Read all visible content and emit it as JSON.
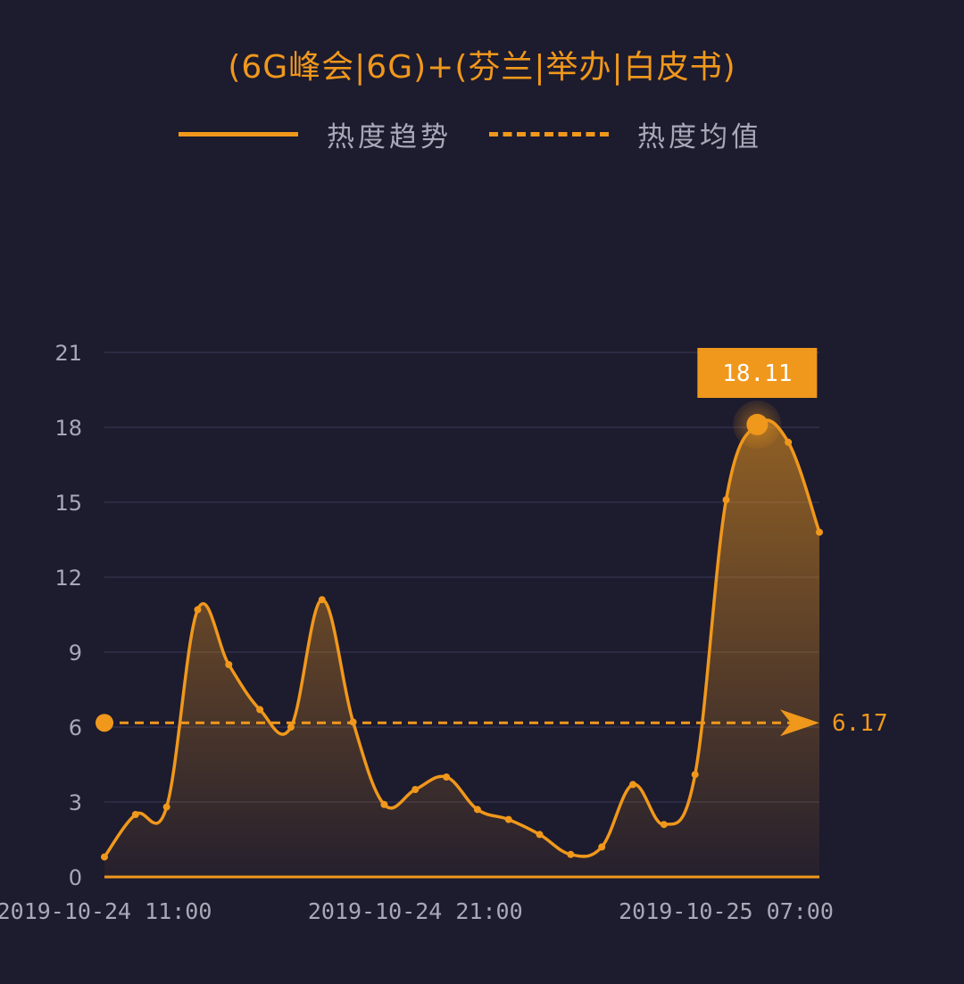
{
  "chart_data": {
    "type": "line",
    "title": "(6G峰会|6G)+(芬兰|举办|白皮书)",
    "legend": [
      "热度趋势",
      "热度均值"
    ],
    "legend_position": "top",
    "ylim": [
      0,
      21
    ],
    "yticks": [
      "0",
      "3",
      "6",
      "9",
      "12",
      "15",
      "18",
      "21"
    ],
    "ytick_values": [
      0,
      3,
      6,
      9,
      12,
      15,
      18,
      21
    ],
    "xtick_labels": [
      "2019-10-24 11:00",
      "2019-10-24 21:00",
      "2019-10-25 07:00"
    ],
    "xtick_index": [
      0,
      10,
      20
    ],
    "grid": true,
    "series": [
      {
        "name": "热度趋势",
        "values": [
          0.8,
          2.5,
          2.8,
          10.7,
          8.5,
          6.7,
          6.0,
          11.1,
          6.2,
          2.9,
          3.5,
          4.0,
          2.7,
          2.3,
          1.7,
          0.9,
          1.2,
          3.7,
          2.1,
          4.1,
          15.1,
          18.11,
          17.4,
          13.8
        ]
      }
    ],
    "average": {
      "name": "热度均值",
      "value": 6.17,
      "label": "6.17"
    },
    "peak": {
      "index": 21,
      "value": 18.11,
      "label": "18.11"
    },
    "colors": {
      "background": "#1d1b2e",
      "accent": "#f0981c",
      "text": "#a8a8b8",
      "grid": "#2c2a42"
    }
  }
}
